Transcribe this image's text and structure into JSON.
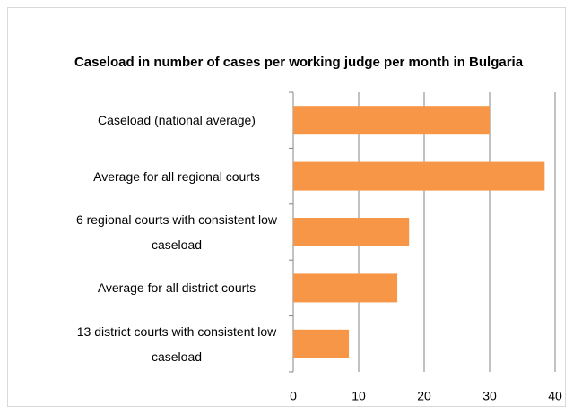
{
  "chart_data": {
    "type": "bar",
    "orientation": "horizontal",
    "title": "Caseload in number of cases per working judge per month in Bulgaria",
    "categories": [
      "Caseload (national average)",
      "Average for all regional courts",
      "6 regional courts with consistent low caseload",
      "Average for all district courts",
      "13 district courts with consistent low caseload"
    ],
    "values": [
      30,
      38.4,
      17.7,
      15.9,
      8.5
    ],
    "color": "#f79646",
    "xlim": [
      0,
      40
    ],
    "xticks": [
      0,
      10,
      20,
      30,
      40
    ],
    "grid": true
  }
}
